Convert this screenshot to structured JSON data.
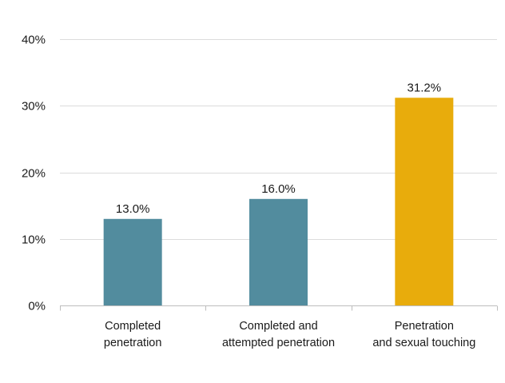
{
  "chart_data": {
    "type": "bar",
    "categories": [
      [
        "Completed",
        "penetration"
      ],
      [
        "Completed and",
        "attempted penetration"
      ],
      [
        "Penetration",
        "and sexual touching"
      ]
    ],
    "values": [
      13.0,
      16.0,
      31.2
    ],
    "value_labels": [
      "13.0%",
      "16.0%",
      "31.2%"
    ],
    "bar_colors": [
      "#528c9e",
      "#528c9e",
      "#e8ac0c"
    ],
    "ylim": [
      0,
      40
    ],
    "yticks": [
      0,
      10,
      20,
      30,
      40
    ],
    "ytick_labels": [
      "0%",
      "10%",
      "20%",
      "30%",
      "40%"
    ],
    "grid": true,
    "grid_color": "#dcdcdc",
    "axis_color": "#bdbdbd",
    "title": "",
    "xlabel": "",
    "ylabel": "",
    "legend": "none"
  }
}
